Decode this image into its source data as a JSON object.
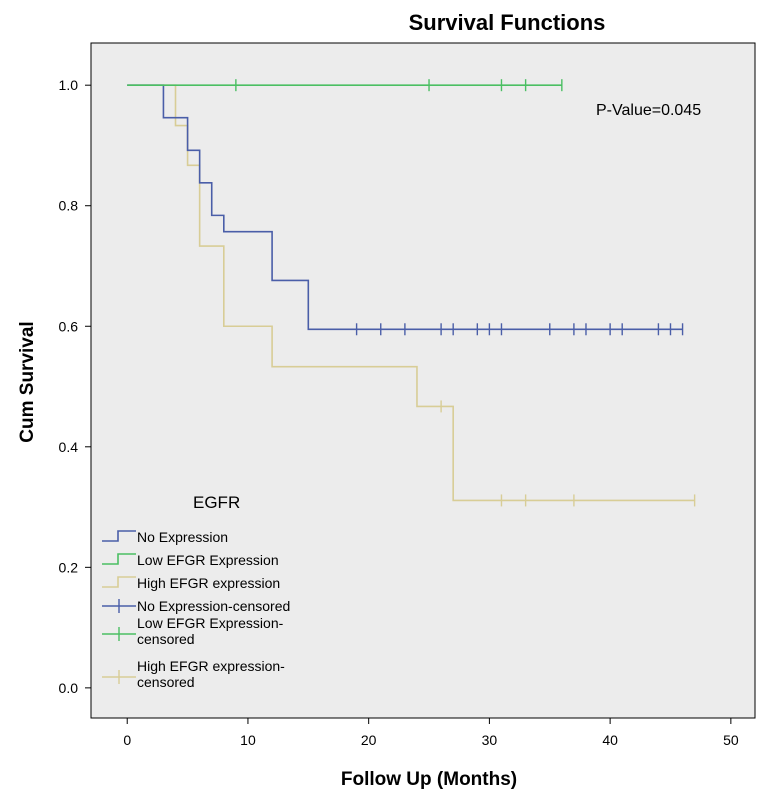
{
  "chart_data": {
    "type": "line",
    "title": "Survival Functions",
    "xlabel": "Follow Up  (Months)",
    "ylabel": "Cum Survival",
    "xlim": [
      -3,
      52
    ],
    "ylim": [
      -0.05,
      1.07
    ],
    "xticks": [
      0,
      10,
      20,
      30,
      40,
      50
    ],
    "yticks": [
      0.0,
      0.2,
      0.4,
      0.6,
      0.8,
      1.0
    ],
    "xtick_labels": [
      "0",
      "10",
      "20",
      "30",
      "40",
      "50"
    ],
    "ytick_labels": [
      "0.0",
      "0.2",
      "0.4",
      "0.6",
      "0.8",
      "1.0"
    ],
    "annotation": "P-Value=0.045",
    "legend_title": "EGFR",
    "legend_placement": "bottom-left",
    "plot_background": "#ececec",
    "grid": false,
    "series": [
      {
        "name": "No Expression",
        "censored_name": "No Expression-censored",
        "color": "#4a5ea8",
        "start": 1.0,
        "steps": [
          [
            3,
            0.946
          ],
          [
            5,
            0.892
          ],
          [
            6,
            0.838
          ],
          [
            7,
            0.784
          ],
          [
            8,
            0.757
          ],
          [
            12,
            0.676
          ],
          [
            15,
            0.595
          ]
        ],
        "end_x": 46,
        "censored": [
          [
            19,
            0.595
          ],
          [
            21,
            0.595
          ],
          [
            23,
            0.595
          ],
          [
            26,
            0.595
          ],
          [
            27,
            0.595
          ],
          [
            29,
            0.595
          ],
          [
            30,
            0.595
          ],
          [
            31,
            0.595
          ],
          [
            35,
            0.595
          ],
          [
            37,
            0.595
          ],
          [
            38,
            0.595
          ],
          [
            40,
            0.595
          ],
          [
            41,
            0.595
          ],
          [
            44,
            0.595
          ],
          [
            45,
            0.595
          ],
          [
            46,
            0.595
          ]
        ]
      },
      {
        "name": "Low EFGR Expression",
        "censored_name": "Low EFGR Expression-censored",
        "color": "#4bbf63",
        "start": 1.0,
        "steps": [],
        "end_x": 36,
        "censored": [
          [
            9,
            1.0
          ],
          [
            25,
            1.0
          ],
          [
            31,
            1.0
          ],
          [
            33,
            1.0
          ],
          [
            36,
            1.0
          ]
        ]
      },
      {
        "name": "High EFGR expression",
        "censored_name": "High EFGR expression-censored",
        "color": "#d8cd96",
        "start": 1.0,
        "steps": [
          [
            4,
            0.933
          ],
          [
            5,
            0.867
          ],
          [
            6,
            0.733
          ],
          [
            8,
            0.6
          ],
          [
            12,
            0.533
          ],
          [
            24,
            0.467
          ],
          [
            27,
            0.311
          ]
        ],
        "end_x": 47,
        "censored": [
          [
            26,
            0.467
          ],
          [
            31,
            0.311
          ],
          [
            33,
            0.311
          ],
          [
            37,
            0.311
          ],
          [
            47,
            0.311
          ]
        ]
      }
    ]
  }
}
